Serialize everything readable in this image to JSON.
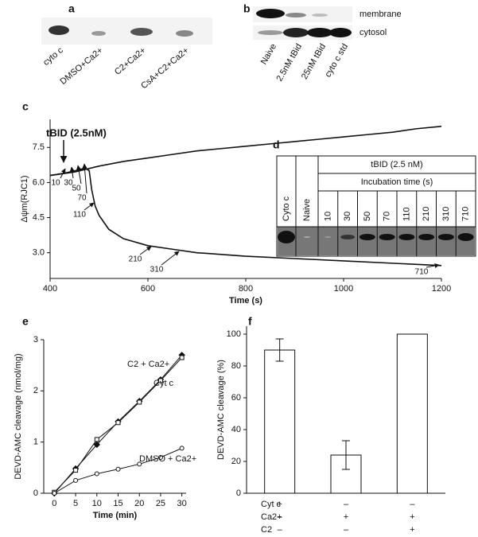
{
  "figure": {
    "panel_a": {
      "letter": "a",
      "lanes": [
        "cyto c",
        "DMSO+Ca2+",
        "C2+Ca2+",
        "CsA+C2+Ca2+"
      ]
    },
    "panel_b": {
      "letter": "b",
      "rows": [
        "membrane",
        "cytosol"
      ],
      "lanes": [
        "Naive",
        "2.5nM tBid",
        "25nM tBid",
        "cyto c std"
      ]
    },
    "panel_d": {
      "letter": "d",
      "header": "tBID (2.5 nM)",
      "subheader": "Incubation time (s)",
      "lanes": [
        "Cyto c",
        "Naive",
        "10",
        "30",
        "50",
        "70",
        "110",
        "210",
        "310",
        "710"
      ]
    }
  },
  "chart_data": [
    {
      "panel": "c",
      "type": "line",
      "x_label": "Time (s)",
      "y_label": "Δψm(RJC1)",
      "annotation": "tBID (2.5nM)",
      "arrow_labels": [
        "10",
        "30",
        "50",
        "70",
        "110",
        "210",
        "310",
        "710"
      ],
      "xlim": [
        400,
        1200
      ],
      "ylim": [
        1.9,
        8.7
      ],
      "xticks": [
        400,
        600,
        800,
        1000,
        1200
      ],
      "yticks": [
        {
          "value": 3,
          "label": "3.0"
        },
        {
          "value": 4.5,
          "label": "4.5"
        },
        {
          "value": 6,
          "label": "6.0"
        },
        {
          "value": 7.5,
          "label": "7.5"
        }
      ],
      "series": [
        {
          "color": "#111111",
          "x": [
            400,
            450,
            500,
            550,
            600,
            650,
            700,
            750,
            800,
            850,
            900,
            950,
            1000,
            1050,
            1100,
            1150,
            1200
          ],
          "values": [
            6.3,
            6.45,
            6.7,
            6.9,
            7.05,
            7.2,
            7.35,
            7.45,
            7.55,
            7.65,
            7.75,
            7.85,
            7.95,
            8.05,
            8.15,
            8.3,
            8.4
          ]
        },
        {
          "color": "#111111",
          "x": [
            400,
            430,
            460,
            472,
            480,
            485,
            492,
            500,
            520,
            550,
            600,
            650,
            700,
            800,
            900,
            1000,
            1100,
            1200
          ],
          "values": [
            6.3,
            6.4,
            6.55,
            6.62,
            6.5,
            5.7,
            5.0,
            4.6,
            4.0,
            3.6,
            3.3,
            3.15,
            3.0,
            2.85,
            2.75,
            2.65,
            2.55,
            2.45
          ]
        }
      ]
    },
    {
      "panel": "e",
      "type": "scatter",
      "x_label": "Time (min)",
      "y_label": "DEVD-AMC cleavage (nmol/mg)",
      "xlim": [
        -2.5,
        31
      ],
      "ylim": [
        0,
        3
      ],
      "xticks": [
        0,
        5,
        10,
        15,
        20,
        25,
        30
      ],
      "yticks": [
        0,
        1,
        2,
        3
      ],
      "series": [
        {
          "name": "C2 + Ca2+",
          "color": "#111111",
          "marker": "diamond",
          "filled": true,
          "x": [
            0,
            5,
            10,
            15,
            20,
            25,
            30
          ],
          "values": [
            0,
            0.48,
            0.95,
            1.4,
            1.8,
            2.22,
            2.7
          ]
        },
        {
          "name": "Cyt c",
          "color": "#111111",
          "marker": "square",
          "filled": false,
          "x": [
            0,
            5,
            10,
            15,
            20,
            25,
            30
          ],
          "values": [
            0.02,
            0.45,
            1.05,
            1.38,
            1.78,
            2.2,
            2.65
          ]
        },
        {
          "name": "DMSO + Ca2+",
          "color": "#111111",
          "marker": "circle",
          "filled": false,
          "x": [
            0,
            5,
            10,
            15,
            20,
            25,
            30
          ],
          "values": [
            0,
            0.25,
            0.38,
            0.47,
            0.57,
            0.7,
            0.88
          ]
        }
      ]
    },
    {
      "panel": "f",
      "type": "bar",
      "y_label": "DEVD-AMC cleavage (%)",
      "ylim": [
        0,
        105
      ],
      "yticks": [
        0,
        20,
        40,
        60,
        80,
        100
      ],
      "values": [
        90,
        24,
        100
      ],
      "errors": [
        7,
        9,
        null
      ],
      "color": "#ffffff",
      "conditions": [
        {
          "label": "Cyt c",
          "marks": [
            "+",
            "–",
            "–"
          ]
        },
        {
          "label": "Ca2+",
          "marks": [
            "–",
            "+",
            "+"
          ]
        },
        {
          "label": "C2",
          "marks": [
            "–",
            "–",
            "+"
          ]
        }
      ]
    }
  ]
}
